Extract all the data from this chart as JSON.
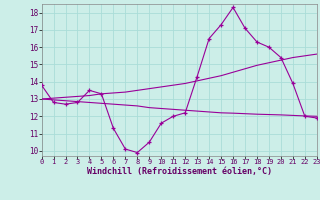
{
  "xlabel": "Windchill (Refroidissement éolien,°C)",
  "bg_color": "#cceee8",
  "grid_color": "#aaddd8",
  "line_color": "#990099",
  "xlim": [
    0,
    23
  ],
  "ylim": [
    9.7,
    18.5
  ],
  "xticks": [
    0,
    1,
    2,
    3,
    4,
    5,
    6,
    7,
    8,
    9,
    10,
    11,
    12,
    13,
    14,
    15,
    16,
    17,
    18,
    19,
    20,
    21,
    22,
    23
  ],
  "yticks": [
    10,
    11,
    12,
    13,
    14,
    15,
    16,
    17,
    18
  ],
  "windchill": [
    13.8,
    12.8,
    12.7,
    12.8,
    13.5,
    13.3,
    11.3,
    10.1,
    9.9,
    10.5,
    11.6,
    12.0,
    12.2,
    14.3,
    16.5,
    17.3,
    18.3,
    17.1,
    16.3,
    16.0,
    15.4,
    13.9,
    12.0,
    11.9
  ],
  "trend_up": [
    13.0,
    13.05,
    13.1,
    13.15,
    13.2,
    13.3,
    13.35,
    13.4,
    13.5,
    13.6,
    13.7,
    13.8,
    13.9,
    14.05,
    14.2,
    14.35,
    14.55,
    14.75,
    14.95,
    15.1,
    15.25,
    15.4,
    15.5,
    15.6
  ],
  "trend_flat": [
    13.0,
    12.95,
    12.9,
    12.85,
    12.8,
    12.75,
    12.7,
    12.65,
    12.6,
    12.5,
    12.45,
    12.4,
    12.35,
    12.3,
    12.25,
    12.2,
    12.18,
    12.15,
    12.12,
    12.1,
    12.08,
    12.05,
    12.02,
    12.0
  ]
}
